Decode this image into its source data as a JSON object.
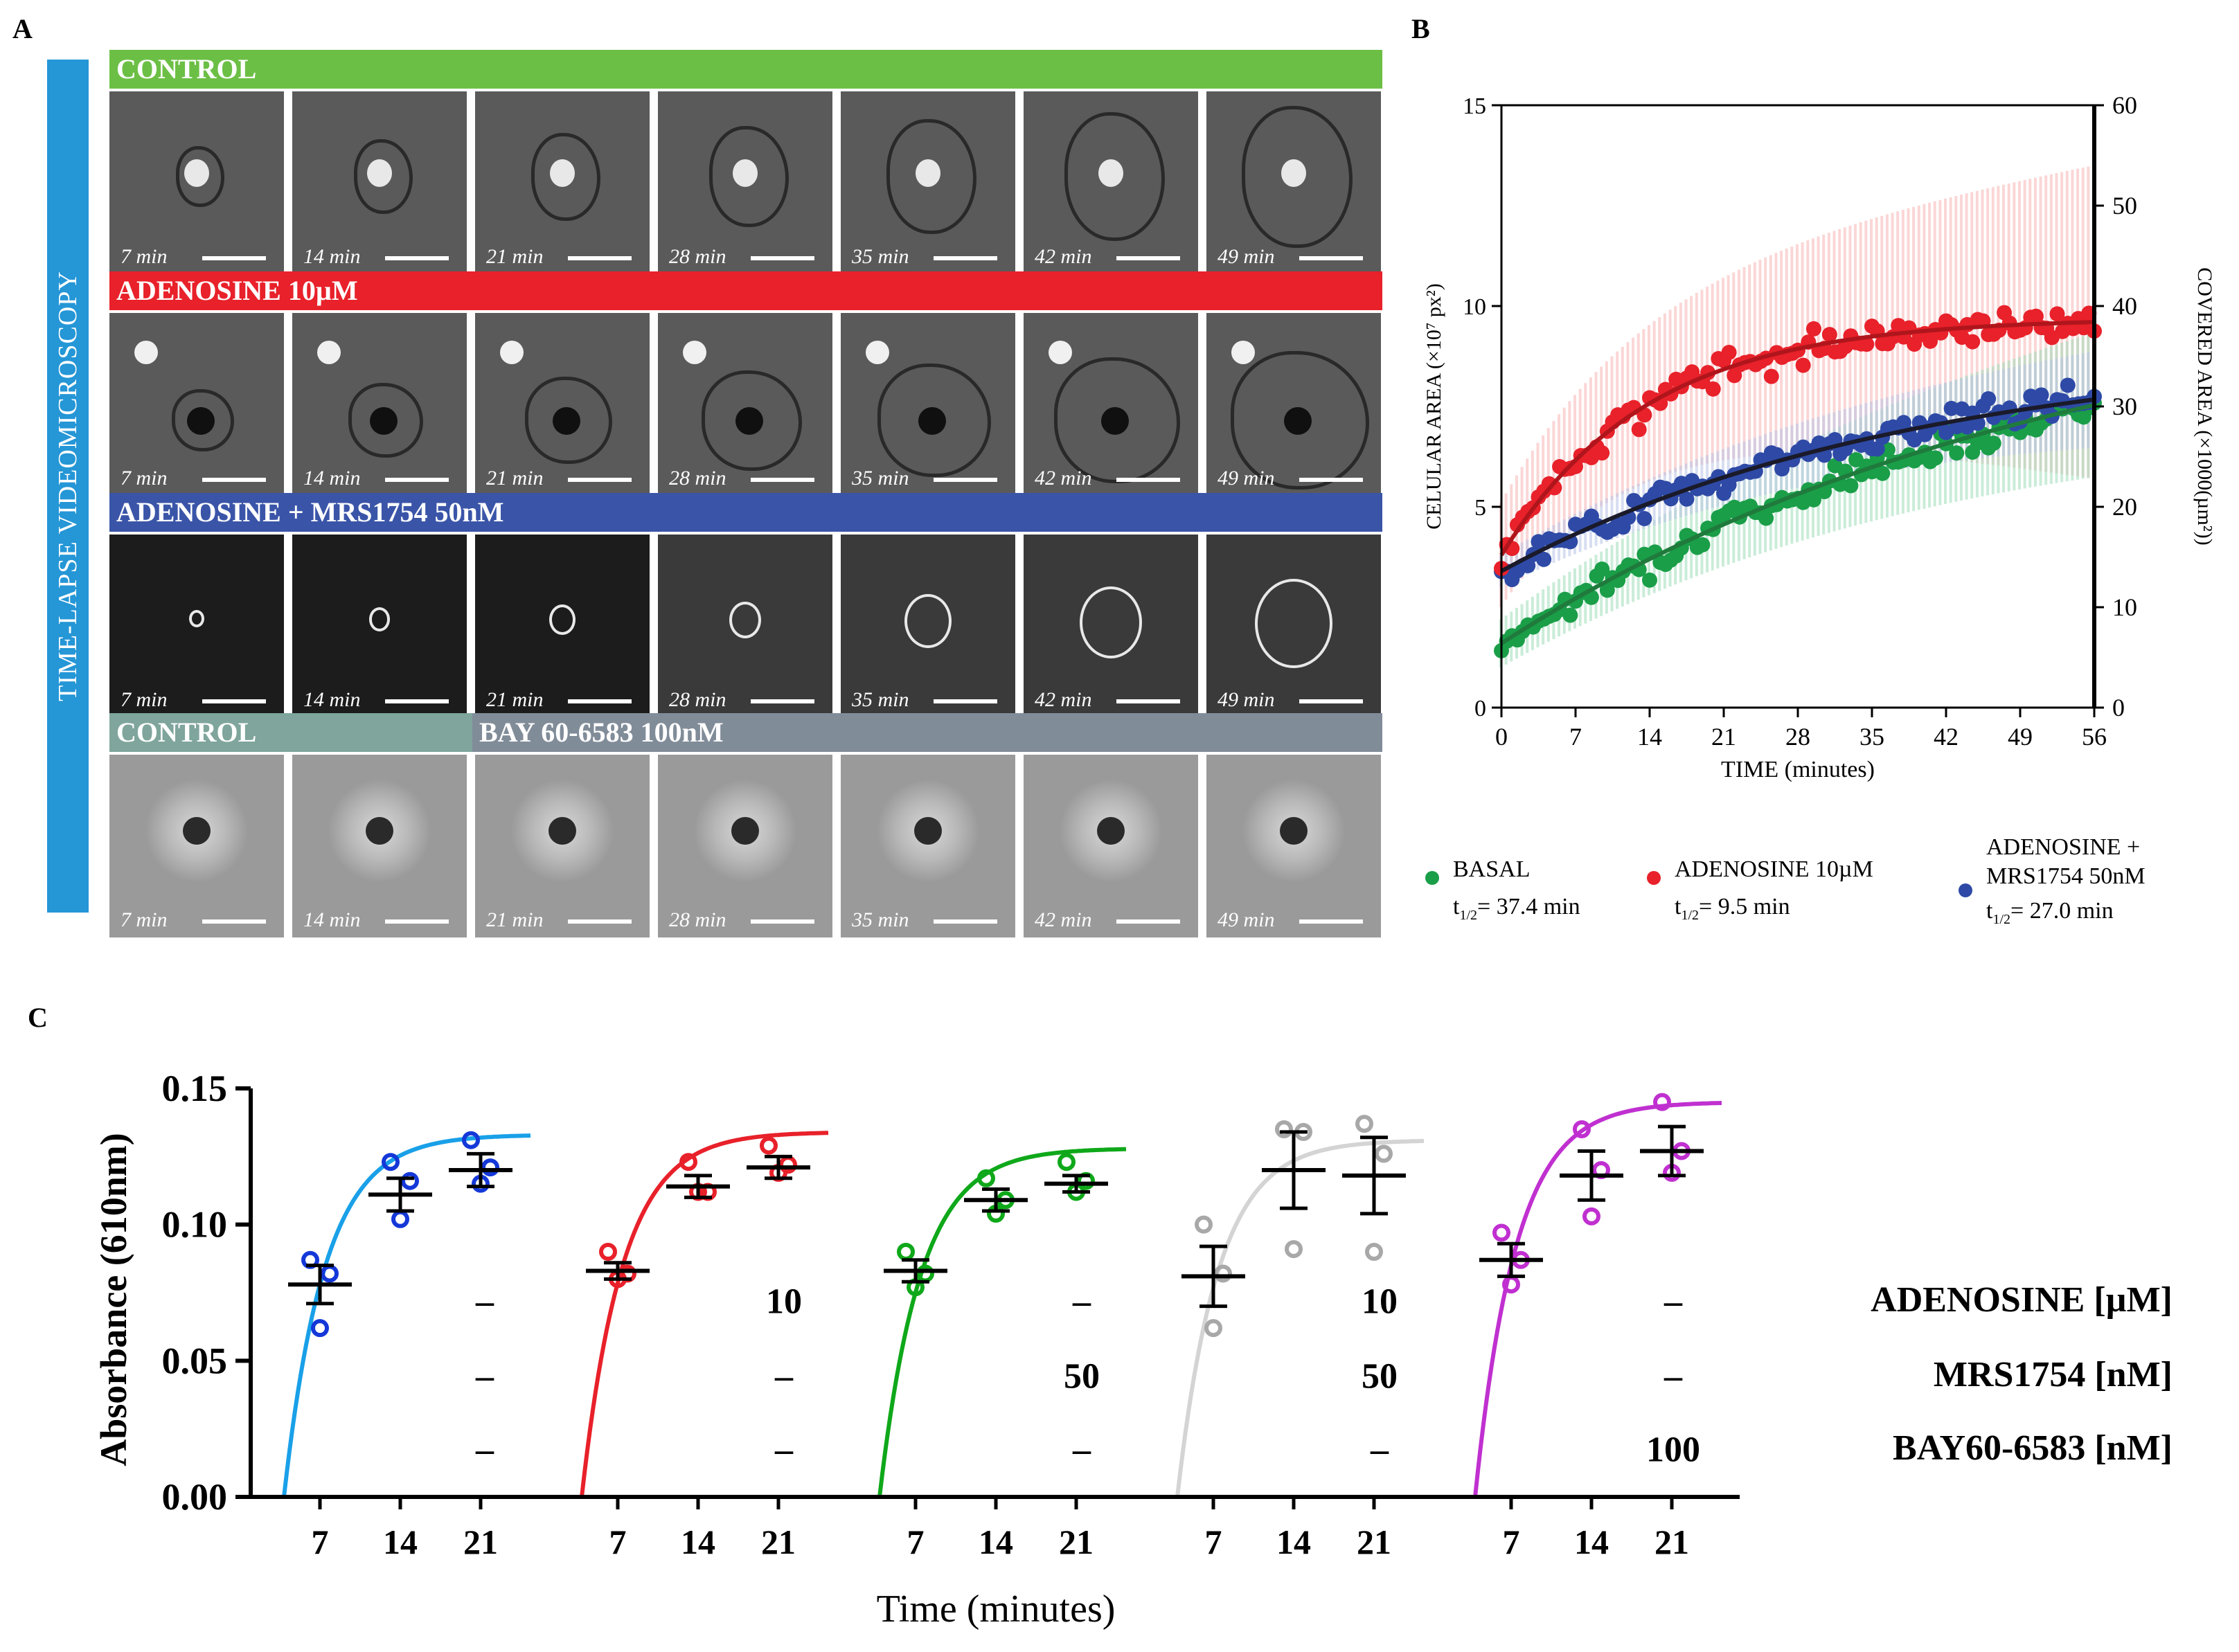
{
  "panel_a": {
    "label": "A",
    "side_label": "TIME-LAPSE VIDEOMICROSCOPY",
    "rows": [
      {
        "title": "CONTROL",
        "color": "#6cbf45",
        "times": [
          "7 min",
          "14 min",
          "21 min",
          "28 min",
          "35 min",
          "42 min",
          "49 min"
        ]
      },
      {
        "title": "ADENOSINE 10µM",
        "color": "#e8212a",
        "times": [
          "7 min",
          "14 min",
          "21 min",
          "28 min",
          "35 min",
          "42 min",
          "49 min"
        ]
      },
      {
        "title": "ADENOSINE + MRS1754 50nM",
        "color": "#3a55a8",
        "times": [
          "7 min",
          "14 min",
          "21 min",
          "28 min",
          "35 min",
          "42 min",
          "49 min"
        ]
      },
      {
        "title": "CONTROL",
        "title2": "BAY 60-6583 100nM",
        "color": "#7fa59c",
        "color2": "#818c99",
        "times": [
          "7 min",
          "14 min",
          "21 min",
          "28 min",
          "35 min",
          "42 min",
          "49 min"
        ]
      }
    ]
  },
  "panel_b": {
    "label": "B",
    "chart_data": {
      "type": "scatter",
      "xlabel": "TIME (minutes)",
      "ylabel": "CELULAR AREA (×10⁷ px²)",
      "y2label": "COVERED AREA (×1000(µm²))",
      "xlim": [
        0,
        56
      ],
      "ylim": [
        0,
        15
      ],
      "y2lim": [
        0,
        60
      ],
      "x_ticks": [
        0,
        7,
        14,
        21,
        28,
        35,
        42,
        49,
        56
      ],
      "y_ticks": [
        0,
        5,
        10,
        15
      ],
      "y2_ticks": [
        0,
        10,
        20,
        30,
        40,
        50,
        60
      ],
      "series": [
        {
          "name": "BASAL",
          "t_half": "37.4 min",
          "color": "#1a9e48",
          "fit_color": "#1f7a3c",
          "band_color": "#9edcb8",
          "fit": {
            "y0": 1.6,
            "plateau": 10.8,
            "k": 0.0185
          },
          "sd": 1.2
        },
        {
          "name": "ADENOSINE 10µM",
          "t_half": "9.5 min",
          "color": "#e8212a",
          "fit_color": "#b0151c",
          "band_color": "#f7b4b4",
          "fit": {
            "y0": 3.8,
            "plateau": 9.7,
            "k": 0.073
          },
          "sd": 2.6
        },
        {
          "name": "ADENOSINE + MRS1754 50nM",
          "name_line1": "ADENOSINE +",
          "name_line2": "MRS1754 50nM",
          "t_half": "27.0 min",
          "color": "#2e4aa6",
          "fit_color": "#1a1a2a",
          "band_color": "#b8c2e6",
          "fit": {
            "y0": 3.4,
            "plateau": 9.0,
            "k": 0.0257
          },
          "sd": 0.8
        }
      ],
      "legend_placement": "bottom"
    }
  },
  "panel_c": {
    "label": "C",
    "chart_data": {
      "type": "scatter",
      "xlabel": "Time (minutes)",
      "ylabel": "Absorbance (610nm)",
      "ylim": [
        0,
        0.15
      ],
      "y_ticks": [
        "0.00",
        "0.05",
        "0.10",
        "0.15"
      ],
      "x_tick_labels": [
        "7",
        "14",
        "21"
      ],
      "groups": [
        {
          "color": "#1438d8",
          "curve_color": "#19a0e8",
          "means": [
            0.078,
            0.111,
            0.12
          ],
          "sem": [
            0.007,
            0.006,
            0.006
          ],
          "points": [
            [
              0.087,
              0.082,
              0.062
            ],
            [
              0.123,
              0.116,
              0.102
            ],
            [
              0.131,
              0.121,
              0.115
            ]
          ]
        },
        {
          "color": "#e8212a",
          "curve_color": "#e8212a",
          "means": [
            0.083,
            0.114,
            0.121
          ],
          "sem": [
            0.003,
            0.004,
            0.004
          ],
          "points": [
            [
              0.09,
              0.082,
              0.08
            ],
            [
              0.123,
              0.112,
              0.112
            ],
            [
              0.129,
              0.122,
              0.119
            ]
          ]
        },
        {
          "color": "#0fa81a",
          "curve_color": "#0fa81a",
          "means": [
            0.083,
            0.109,
            0.115
          ],
          "sem": [
            0.004,
            0.004,
            0.003
          ],
          "points": [
            [
              0.09,
              0.082,
              0.077
            ],
            [
              0.117,
              0.109,
              0.104
            ],
            [
              0.123,
              0.116,
              0.112
            ]
          ]
        },
        {
          "color": "#a8a8a8",
          "curve_color": "#d4d4d4",
          "means": [
            0.081,
            0.12,
            0.118
          ],
          "sem": [
            0.011,
            0.014,
            0.014
          ],
          "points": [
            [
              0.1,
              0.082,
              0.062
            ],
            [
              0.135,
              0.134,
              0.091
            ],
            [
              0.137,
              0.126,
              0.09
            ]
          ]
        },
        {
          "color": "#c030d0",
          "curve_color": "#c030d0",
          "means": [
            0.087,
            0.118,
            0.127
          ],
          "sem": [
            0.006,
            0.009,
            0.009
          ],
          "points": [
            [
              0.097,
              0.087,
              0.078
            ],
            [
              0.135,
              0.12,
              0.103
            ],
            [
              0.145,
              0.127,
              0.119
            ]
          ]
        }
      ],
      "treatments": [
        {
          "name": "ADENOSINE [µM]",
          "values": [
            "–",
            "10",
            "–",
            "10",
            "–"
          ]
        },
        {
          "name": "MRS1754 [nM]",
          "values": [
            "–",
            "–",
            "50",
            "50",
            "–"
          ]
        },
        {
          "name": "BAY60-6583 [nM]",
          "values": [
            "–",
            "–",
            "–",
            "–",
            "100"
          ]
        }
      ]
    }
  }
}
